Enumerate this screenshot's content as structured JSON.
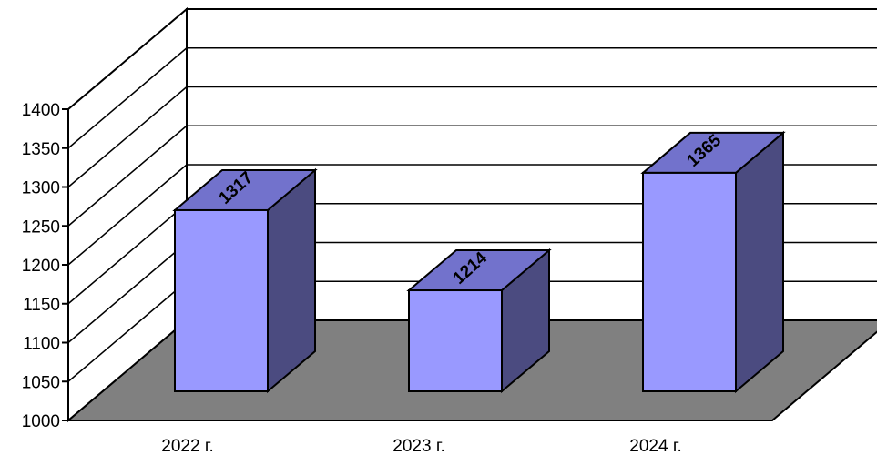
{
  "chart_data": {
    "type": "bar",
    "categories": [
      "2022 г.",
      "2023 г.",
      "2024 г."
    ],
    "values": [
      1317,
      1214,
      1365
    ],
    "data_labels": [
      "1317",
      "1214",
      "1365"
    ],
    "yticks": [
      "1000",
      "1050",
      "1100",
      "1150",
      "1200",
      "1250",
      "1300",
      "1350",
      "1400"
    ],
    "ylim": [
      1000,
      1400
    ],
    "grid": true,
    "legend": "none",
    "colors": {
      "bar_front": "#9999ff",
      "bar_top": "#7272cc",
      "bar_side": "#4b4b80",
      "floor": "#808080",
      "background": "#ffffff"
    }
  }
}
